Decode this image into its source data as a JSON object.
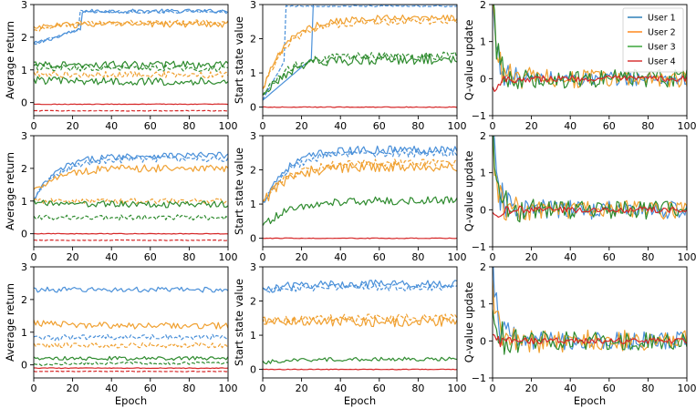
{
  "chart_data": {
    "type": "line",
    "description_rows": 3,
    "description_cols": 3,
    "legend": {
      "placement": "top-right of top-right panel",
      "entries": [
        {
          "name": "User 1",
          "color": "#1f77b4"
        },
        {
          "name": "User 2",
          "color": "#ff7f0e"
        },
        {
          "name": "User 3",
          "color": "#2ca02c"
        },
        {
          "name": "User 4",
          "color": "#d62728"
        }
      ]
    },
    "colors": {
      "user1": "#4a90d9",
      "user2": "#f0a030",
      "user3": "#2e8b2e",
      "user4": "#d62728"
    },
    "x_axis": {
      "label": "Epoch",
      "range": [
        0,
        100
      ],
      "ticks": [
        0,
        20,
        40,
        60,
        80,
        100
      ],
      "tick_labels": [
        "0",
        "20",
        "40",
        "60",
        "80",
        "100"
      ]
    },
    "columns": [
      {
        "ylabel": "Average return",
        "ylim": [
          -0.4,
          3.0
        ],
        "yticks": [
          0,
          1,
          2,
          3
        ],
        "ytick_labels": [
          "0",
          "1",
          "2",
          "3"
        ]
      },
      {
        "ylabel": "Start state value",
        "ylim": [
          -0.25,
          3.0
        ],
        "yticks": [
          0,
          1,
          2,
          3
        ],
        "ytick_labels": [
          "0",
          "1",
          "2",
          "3"
        ]
      },
      {
        "ylabel": "Q-value update",
        "ylim": [
          -1,
          2
        ],
        "yticks": [
          -1,
          0,
          1,
          2
        ],
        "ytick_labels": [
          "−1",
          "0",
          "1",
          "2"
        ]
      }
    ],
    "panels": [
      {
        "row": 0,
        "col": 0,
        "series": [
          {
            "name": "User 1",
            "style": "solid",
            "start": 1.8,
            "plateau": 2.8,
            "jump_at": 25,
            "noise": 0.06
          },
          {
            "name": "User 1",
            "style": "dashed",
            "start": 1.8,
            "plateau": 2.78,
            "jump_at": 24,
            "noise": 0.05
          },
          {
            "name": "User 2",
            "style": "solid",
            "start": 2.3,
            "plateau": 2.4,
            "noise": 0.1
          },
          {
            "name": "User 2",
            "style": "dashed",
            "start": 2.2,
            "plateau": 2.45,
            "noise": 0.08
          },
          {
            "name": "User 3",
            "style": "solid",
            "start": 1.2,
            "plateau": 1.15,
            "noise": 0.12
          },
          {
            "name": "User 3",
            "style": "dashed",
            "start": 1.1,
            "plateau": 1.05,
            "noise": 0.1
          },
          {
            "name": "User 3",
            "style": "solid",
            "start": 0.7,
            "plateau": 0.65,
            "noise": 0.12
          },
          {
            "name": "User 2",
            "style": "dashed",
            "start": 0.9,
            "plateau": 0.85,
            "noise": 0.1
          },
          {
            "name": "User 4",
            "style": "solid",
            "start": -0.05,
            "plateau": -0.05,
            "noise": 0.01
          },
          {
            "name": "User 4",
            "style": "dashed",
            "start": -0.25,
            "plateau": -0.25,
            "noise": 0.01
          }
        ]
      },
      {
        "row": 0,
        "col": 1,
        "series": [
          {
            "name": "User 1",
            "style": "solid",
            "start": 0.2,
            "plateau": 3.0,
            "jump_at": 26,
            "noise": 0.0
          },
          {
            "name": "User 1",
            "style": "dashed",
            "start": 0.2,
            "plateau": 2.95,
            "jump_at": 12,
            "noise": 0.02
          },
          {
            "name": "User 2",
            "style": "solid",
            "start": 0.5,
            "plateau": 2.6,
            "noise": 0.1
          },
          {
            "name": "User 2",
            "style": "dashed",
            "start": 0.5,
            "plateau": 2.5,
            "noise": 0.1
          },
          {
            "name": "User 3",
            "style": "solid",
            "start": 0.3,
            "plateau": 1.4,
            "noise": 0.15
          },
          {
            "name": "User 3",
            "style": "dashed",
            "start": 0.3,
            "plateau": 1.5,
            "noise": 0.12
          },
          {
            "name": "User 4",
            "style": "solid",
            "start": 0.0,
            "plateau": 0.0,
            "noise": 0.01
          }
        ]
      },
      {
        "row": 0,
        "col": 2,
        "series": [
          {
            "name": "User 1",
            "style": "solid",
            "start": 2.0,
            "plateau": 0.0,
            "noise": 0.2
          },
          {
            "name": "User 2",
            "style": "solid",
            "start": 2.0,
            "plateau": 0.0,
            "noise": 0.25
          },
          {
            "name": "User 3",
            "style": "solid",
            "start": 2.0,
            "plateau": 0.0,
            "noise": 0.25
          },
          {
            "name": "User 4",
            "style": "solid",
            "start": -0.3,
            "plateau": 0.0,
            "noise": 0.08
          }
        ]
      },
      {
        "row": 1,
        "col": 0,
        "series": [
          {
            "name": "User 1",
            "style": "solid",
            "start": 1.0,
            "plateau": 2.4,
            "noise": 0.1
          },
          {
            "name": "User 1",
            "style": "dashed",
            "start": 1.0,
            "plateau": 2.3,
            "noise": 0.1
          },
          {
            "name": "User 2",
            "style": "solid",
            "start": 1.3,
            "plateau": 2.0,
            "noise": 0.12
          },
          {
            "name": "User 2",
            "style": "dashed",
            "start": 1.0,
            "plateau": 1.0,
            "noise": 0.08
          },
          {
            "name": "User 3",
            "style": "solid",
            "start": 1.0,
            "plateau": 0.9,
            "noise": 0.1
          },
          {
            "name": "User 3",
            "style": "dashed",
            "start": 0.5,
            "plateau": 0.5,
            "noise": 0.08
          },
          {
            "name": "User 4",
            "style": "solid",
            "start": 0.0,
            "plateau": 0.0,
            "noise": 0.01
          },
          {
            "name": "User 4",
            "style": "dashed",
            "start": -0.2,
            "plateau": -0.2,
            "noise": 0.01
          }
        ]
      },
      {
        "row": 1,
        "col": 1,
        "series": [
          {
            "name": "User 1",
            "style": "solid",
            "start": 1.0,
            "plateau": 2.6,
            "noise": 0.12
          },
          {
            "name": "User 1",
            "style": "dashed",
            "start": 1.0,
            "plateau": 2.5,
            "noise": 0.12
          },
          {
            "name": "User 2",
            "style": "solid",
            "start": 1.0,
            "plateau": 2.1,
            "noise": 0.15
          },
          {
            "name": "User 2",
            "style": "dashed",
            "start": 1.0,
            "plateau": 2.2,
            "noise": 0.12
          },
          {
            "name": "User 3",
            "style": "solid",
            "start": 0.3,
            "plateau": 1.1,
            "noise": 0.12
          },
          {
            "name": "User 4",
            "style": "solid",
            "start": 0.0,
            "plateau": 0.0,
            "noise": 0.01
          }
        ]
      },
      {
        "row": 1,
        "col": 2,
        "series": [
          {
            "name": "User 1",
            "style": "solid",
            "start": 2.0,
            "plateau": 0.0,
            "noise": 0.25
          },
          {
            "name": "User 2",
            "style": "solid",
            "start": 2.0,
            "plateau": 0.0,
            "noise": 0.25
          },
          {
            "name": "User 3",
            "style": "solid",
            "start": 2.0,
            "plateau": 0.0,
            "noise": 0.25
          },
          {
            "name": "User 4",
            "style": "solid",
            "start": -0.2,
            "plateau": 0.0,
            "noise": 0.08
          }
        ]
      },
      {
        "row": 2,
        "col": 0,
        "series": [
          {
            "name": "User 1",
            "style": "solid",
            "start": 2.3,
            "plateau": 2.3,
            "noise": 0.08
          },
          {
            "name": "User 1",
            "style": "dashed",
            "start": 0.8,
            "plateau": 0.85,
            "noise": 0.08
          },
          {
            "name": "User 2",
            "style": "solid",
            "start": 1.3,
            "plateau": 1.2,
            "noise": 0.1
          },
          {
            "name": "User 2",
            "style": "dashed",
            "start": 0.6,
            "plateau": 0.6,
            "noise": 0.08
          },
          {
            "name": "User 3",
            "style": "solid",
            "start": 0.2,
            "plateau": 0.2,
            "noise": 0.06
          },
          {
            "name": "User 3",
            "style": "dashed",
            "start": 0.0,
            "plateau": 0.05,
            "noise": 0.04
          },
          {
            "name": "User 4",
            "style": "solid",
            "start": -0.1,
            "plateau": -0.1,
            "noise": 0.01
          },
          {
            "name": "User 4",
            "style": "dashed",
            "start": -0.2,
            "plateau": -0.2,
            "noise": 0.01
          }
        ]
      },
      {
        "row": 2,
        "col": 1,
        "series": [
          {
            "name": "User 1",
            "style": "solid",
            "start": 2.3,
            "plateau": 2.5,
            "noise": 0.12
          },
          {
            "name": "User 1",
            "style": "dashed",
            "start": 2.3,
            "plateau": 2.4,
            "noise": 0.1
          },
          {
            "name": "User 2",
            "style": "solid",
            "start": 1.4,
            "plateau": 1.4,
            "noise": 0.15
          },
          {
            "name": "User 2",
            "style": "dashed",
            "start": 1.4,
            "plateau": 1.5,
            "noise": 0.12
          },
          {
            "name": "User 3",
            "style": "solid",
            "start": 0.2,
            "plateau": 0.3,
            "noise": 0.06
          },
          {
            "name": "User 4",
            "style": "solid",
            "start": 0.0,
            "plateau": 0.0,
            "noise": 0.01
          }
        ]
      },
      {
        "row": 2,
        "col": 2,
        "series": [
          {
            "name": "User 1",
            "style": "solid",
            "start": 2.0,
            "plateau": 0.0,
            "noise": 0.25
          },
          {
            "name": "User 2",
            "style": "solid",
            "start": 1.0,
            "plateau": 0.0,
            "noise": 0.3
          },
          {
            "name": "User 3",
            "style": "solid",
            "start": 0.3,
            "plateau": 0.0,
            "noise": 0.25
          },
          {
            "name": "User 4",
            "style": "solid",
            "start": 0.0,
            "plateau": 0.0,
            "noise": 0.08
          }
        ]
      }
    ]
  }
}
